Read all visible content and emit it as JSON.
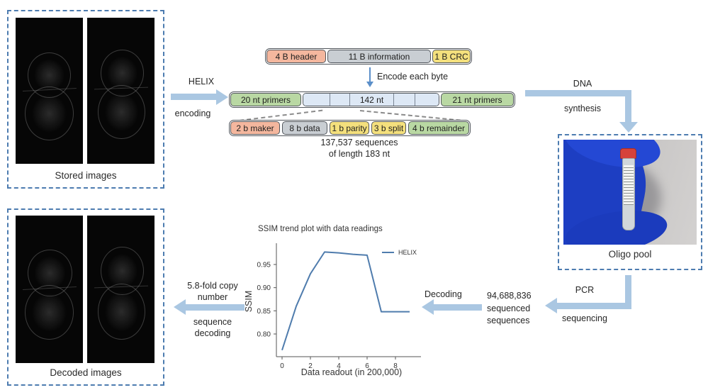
{
  "figure": {
    "stored_box_label": "Stored images",
    "decoded_box_label": "Decoded images",
    "oligo_box_label": "Oligo pool",
    "helix_arrow": {
      "line1": "HELIX",
      "line2": "encoding"
    },
    "encode_arrow_label": "Encode each byte",
    "dna_arrow": {
      "line1": "DNA",
      "line2": "synthesis"
    },
    "pcr_arrow": {
      "line1": "PCR",
      "line2": "sequencing"
    },
    "decoding_arrow_label": "Decoding",
    "fold_arrow": {
      "line1": "5.8-fold copy",
      "line2": "number",
      "line3": "sequence",
      "line4": "decoding"
    },
    "reads": {
      "line1": "94,688,836",
      "line2": "sequenced",
      "line3": "sequences"
    },
    "seq_note": {
      "line1": "137,537 sequences",
      "line2": "of length 183 nt"
    }
  },
  "byte_bar": {
    "segments": [
      {
        "label": "4 B header",
        "color": "#f4b79e"
      },
      {
        "label": "11 B information",
        "color": "#c9ced3"
      },
      {
        "label": "1 B CRC",
        "color": "#f4e07d"
      }
    ]
  },
  "seq_bar": {
    "left_label": "20 nt primers",
    "mid_label": "142 nt",
    "right_label": "21 nt primers",
    "green": "#b9d8a3",
    "cell_color": "#dde8f5"
  },
  "sub_bar": {
    "segments": [
      {
        "label": "2 b maker",
        "color": "#f4b79e"
      },
      {
        "label": "8 b data",
        "color": "#c9ced3"
      },
      {
        "label": "1 b parity",
        "color": "#f4e07d"
      },
      {
        "label": "3 b split",
        "color": "#f4e07d"
      },
      {
        "label": "4 b remainder",
        "color": "#b9d8a3"
      }
    ]
  },
  "colors": {
    "big_arrow": "#aac7e2",
    "thin_arrow": "#5b8fc9",
    "dashed_border": "#4d7cb0",
    "glove_blue": "#1d3ec2",
    "vial_cap_red": "#d6423a"
  },
  "chart_data": {
    "type": "line",
    "title": "SSIM trend plot with data readings",
    "xlabel": "Data readout (in 200,000)",
    "ylabel": "SSIM",
    "x": [
      0,
      1,
      2,
      3,
      4,
      5,
      6,
      7,
      8,
      9
    ],
    "series": [
      {
        "name": "HELIX",
        "color": "#4f7cad",
        "values": [
          0.765,
          0.86,
          0.93,
          0.977,
          0.975,
          0.972,
          0.97,
          0.848,
          0.848,
          0.848
        ]
      }
    ],
    "xticks": [
      0,
      2,
      4,
      6,
      8
    ],
    "yticks": [
      0.8,
      0.85,
      0.9,
      0.95
    ],
    "xlim": [
      -0.4,
      9.6
    ],
    "ylim": [
      0.755,
      0.99
    ],
    "grid": false,
    "legend_position": "upper right"
  }
}
